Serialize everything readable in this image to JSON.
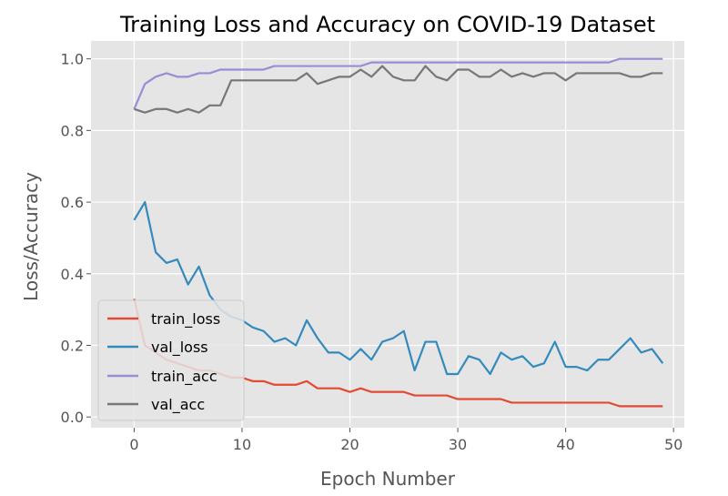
{
  "chart_data": {
    "type": "line",
    "title": "Training Loss and Accuracy on COVID-19 Dataset",
    "xlabel": "Epoch Number",
    "ylabel": "Loss/Accuracy",
    "xlim": [
      -4,
      51
    ],
    "ylim": [
      -0.03,
      1.05
    ],
    "xticks": [
      0,
      10,
      20,
      30,
      40,
      50
    ],
    "xtick_labels": [
      "0",
      "10",
      "20",
      "30",
      "40",
      "50"
    ],
    "yticks": [
      0.0,
      0.2,
      0.4,
      0.6,
      0.8,
      1.0
    ],
    "ytick_labels": [
      "0.0",
      "0.2",
      "0.4",
      "0.6",
      "0.8",
      "1.0"
    ],
    "grid": true,
    "legend_position": "lower-left",
    "x": [
      0,
      1,
      2,
      3,
      4,
      5,
      6,
      7,
      8,
      9,
      10,
      11,
      12,
      13,
      14,
      15,
      16,
      17,
      18,
      19,
      20,
      21,
      22,
      23,
      24,
      25,
      26,
      27,
      28,
      29,
      30,
      31,
      32,
      33,
      34,
      35,
      36,
      37,
      38,
      39,
      40,
      41,
      42,
      43,
      44,
      45,
      46,
      47,
      48,
      49
    ],
    "series": [
      {
        "name": "train_loss",
        "color": "#E24A33",
        "values": [
          0.33,
          0.2,
          0.18,
          0.16,
          0.15,
          0.14,
          0.13,
          0.13,
          0.12,
          0.11,
          0.11,
          0.1,
          0.1,
          0.09,
          0.09,
          0.09,
          0.1,
          0.08,
          0.08,
          0.08,
          0.07,
          0.08,
          0.07,
          0.07,
          0.07,
          0.07,
          0.06,
          0.06,
          0.06,
          0.06,
          0.05,
          0.05,
          0.05,
          0.05,
          0.05,
          0.04,
          0.04,
          0.04,
          0.04,
          0.04,
          0.04,
          0.04,
          0.04,
          0.04,
          0.04,
          0.03,
          0.03,
          0.03,
          0.03,
          0.03
        ]
      },
      {
        "name": "val_loss",
        "color": "#348ABD",
        "values": [
          0.55,
          0.6,
          0.46,
          0.43,
          0.44,
          0.37,
          0.42,
          0.34,
          0.3,
          0.28,
          0.27,
          0.25,
          0.24,
          0.21,
          0.22,
          0.2,
          0.27,
          0.22,
          0.18,
          0.18,
          0.16,
          0.19,
          0.16,
          0.21,
          0.22,
          0.24,
          0.13,
          0.21,
          0.21,
          0.12,
          0.12,
          0.17,
          0.16,
          0.12,
          0.18,
          0.16,
          0.17,
          0.14,
          0.15,
          0.21,
          0.14,
          0.14,
          0.13,
          0.16,
          0.16,
          0.19,
          0.22,
          0.18,
          0.19,
          0.15
        ]
      },
      {
        "name": "train_acc",
        "color": "#988ED5",
        "values": [
          0.86,
          0.93,
          0.95,
          0.96,
          0.95,
          0.95,
          0.96,
          0.96,
          0.97,
          0.97,
          0.97,
          0.97,
          0.97,
          0.98,
          0.98,
          0.98,
          0.98,
          0.98,
          0.98,
          0.98,
          0.98,
          0.98,
          0.99,
          0.99,
          0.99,
          0.99,
          0.99,
          0.99,
          0.99,
          0.99,
          0.99,
          0.99,
          0.99,
          0.99,
          0.99,
          0.99,
          0.99,
          0.99,
          0.99,
          0.99,
          0.99,
          0.99,
          0.99,
          0.99,
          0.99,
          1.0,
          1.0,
          1.0,
          1.0,
          1.0
        ]
      },
      {
        "name": "val_acc",
        "color": "#777777",
        "values": [
          0.86,
          0.85,
          0.86,
          0.86,
          0.85,
          0.86,
          0.85,
          0.87,
          0.87,
          0.94,
          0.94,
          0.94,
          0.94,
          0.94,
          0.94,
          0.94,
          0.96,
          0.93,
          0.94,
          0.95,
          0.95,
          0.97,
          0.95,
          0.98,
          0.95,
          0.94,
          0.94,
          0.98,
          0.95,
          0.94,
          0.97,
          0.97,
          0.95,
          0.95,
          0.97,
          0.95,
          0.96,
          0.95,
          0.96,
          0.96,
          0.94,
          0.96,
          0.96,
          0.96,
          0.96,
          0.96,
          0.95,
          0.95,
          0.96,
          0.96
        ]
      }
    ]
  },
  "style": {
    "plot_background": "#E5E5E5",
    "grid_color": "#FFFFFF",
    "legend_background": "#E5E5E5",
    "legend_border": "#CCCCCC"
  }
}
